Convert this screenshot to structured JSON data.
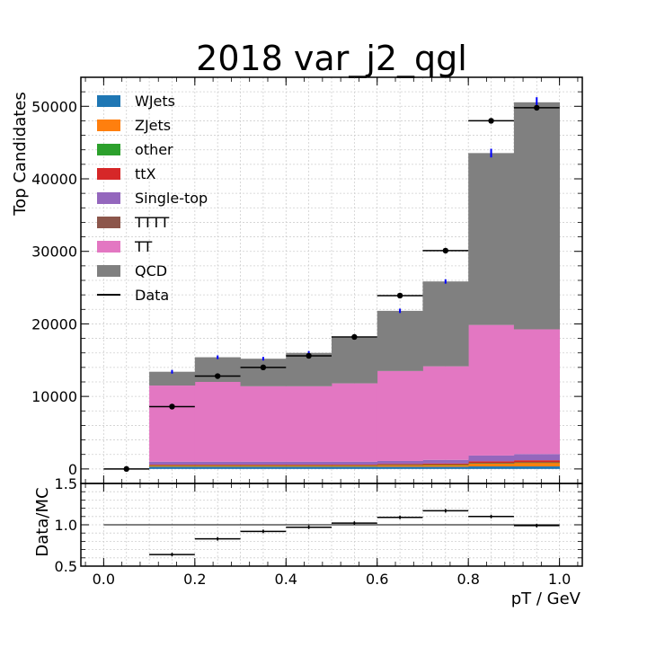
{
  "chart_data": [
    {
      "type": "bar",
      "stacked": true,
      "title": "2018 var_j2_qgl",
      "ylabel": "Top Candidates",
      "xlim": [
        -0.05,
        1.05
      ],
      "ylim": [
        -2000,
        54000
      ],
      "yticks": [
        0,
        10000,
        20000,
        30000,
        40000,
        50000
      ],
      "grid": true,
      "legend_position": "top-left",
      "bin_edges": [
        0,
        0.1,
        0.2,
        0.3,
        0.4,
        0.5,
        0.6,
        0.7,
        0.8,
        0.9,
        1.0
      ],
      "series": [
        {
          "name": "WJets",
          "color": "#1f77b4",
          "values": [
            0,
            300,
            300,
            300,
            300,
            300,
            300,
            300,
            350,
            350
          ]
        },
        {
          "name": "ZJets",
          "color": "#ff7f0e",
          "values": [
            0,
            150,
            150,
            150,
            150,
            150,
            200,
            250,
            400,
            500
          ]
        },
        {
          "name": "other",
          "color": "#2ca02c",
          "values": [
            0,
            50,
            50,
            50,
            50,
            50,
            50,
            50,
            50,
            50
          ]
        },
        {
          "name": "ttX",
          "color": "#d62728",
          "values": [
            0,
            100,
            100,
            100,
            100,
            100,
            150,
            150,
            250,
            300
          ]
        },
        {
          "name": "Single-top",
          "color": "#9467bd",
          "values": [
            0,
            400,
            400,
            400,
            400,
            400,
            400,
            500,
            800,
            850
          ]
        },
        {
          "name": "TTTT",
          "color": "#8c564b",
          "values": [
            0,
            0,
            0,
            0,
            0,
            0,
            0,
            0,
            0,
            0
          ]
        },
        {
          "name": "TT",
          "color": "#e377c2",
          "values": [
            0,
            10500,
            11000,
            10400,
            10400,
            10800,
            12400,
            12900,
            18000,
            17200
          ]
        },
        {
          "name": "QCD",
          "color": "#808080",
          "values": [
            0,
            1900,
            3400,
            3800,
            4600,
            6300,
            8300,
            11700,
            23700,
            31300
          ]
        }
      ],
      "mc_total": [
        0,
        13400,
        15400,
        15200,
        16000,
        18100,
        21800,
        25850,
        43550,
        50550
      ],
      "mc_error": [
        0,
        250,
        250,
        250,
        250,
        250,
        300,
        300,
        600,
        700
      ],
      "data": {
        "name": "Data",
        "values": [
          0,
          8600,
          12800,
          14000,
          15600,
          18200,
          23900,
          30100,
          48000,
          49800
        ]
      }
    },
    {
      "type": "scatter",
      "xlabel": "pT / GeV",
      "ylabel": "Data/MC",
      "ylim": [
        0.5,
        1.5
      ],
      "yticks": [
        0.5,
        1.0,
        1.5
      ],
      "yticklabels": [
        "0.5",
        "1.0",
        "1.5"
      ],
      "xticks": [
        0.0,
        0.2,
        0.4,
        0.6,
        0.8,
        1.0
      ],
      "xticklabels": [
        "0.0",
        "0.2",
        "0.4",
        "0.6",
        "0.8",
        "1.0"
      ],
      "reference_line": 1.0,
      "x": [
        0.15,
        0.25,
        0.35,
        0.45,
        0.55,
        0.65,
        0.75,
        0.85,
        0.95
      ],
      "values": [
        0.64,
        0.83,
        0.92,
        0.97,
        1.02,
        1.09,
        1.17,
        1.1,
        0.99
      ]
    }
  ]
}
